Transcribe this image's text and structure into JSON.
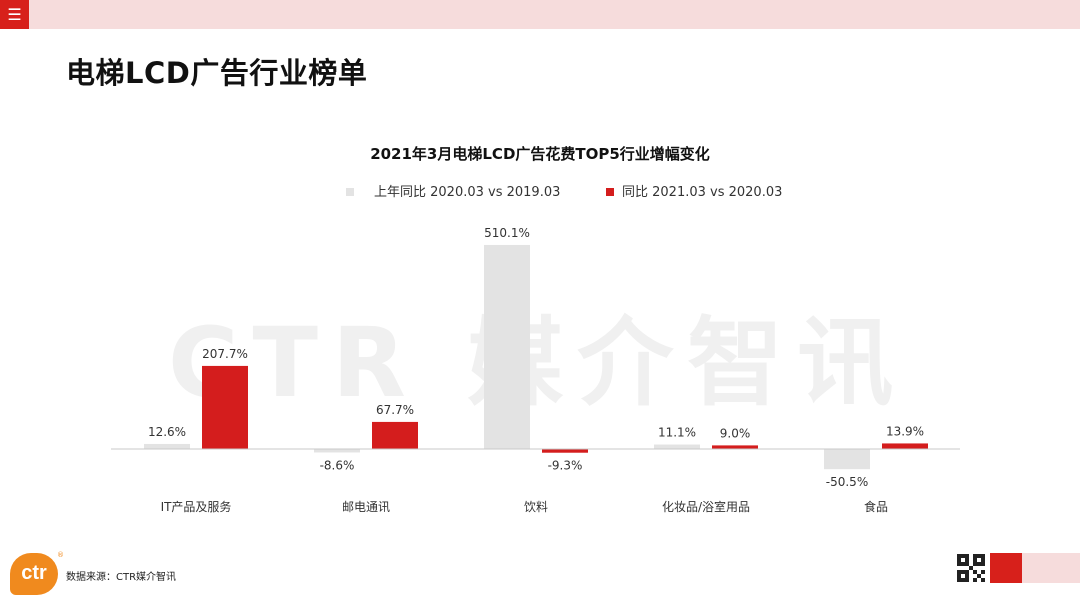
{
  "header": {
    "menu_icon": "hamburger-icon",
    "menu_glyph": "☰"
  },
  "page": {
    "title": "电梯LCD广告行业榜单"
  },
  "watermark": {
    "text": "CTR 媒介智讯"
  },
  "colors": {
    "series1": "#e3e3e3",
    "series2": "#d41d1d",
    "brand_red": "#d7201b",
    "logo_orange": "#f08a1e"
  },
  "chart_data": {
    "type": "bar",
    "title": "2021年3月电梯LCD广告花费TOP5行业增幅变化",
    "categories": [
      "IT产品及服务",
      "邮电通讯",
      "饮料",
      "化妆品/浴室用品",
      "食品"
    ],
    "series": [
      {
        "name": "上年同比 2020.03 vs 2019.03",
        "values": [
          12.6,
          -8.6,
          510.1,
          11.1,
          -50.5
        ],
        "labels": [
          "12.6%",
          "-8.6%",
          "510.1%",
          "11.1%",
          "-50.5%"
        ]
      },
      {
        "name": "同比 2021.03 vs 2020.03",
        "values": [
          207.7,
          67.7,
          -9.3,
          9.0,
          13.9
        ],
        "labels": [
          "207.7%",
          "67.7%",
          "-9.3%",
          "9.0%",
          "13.9%"
        ]
      }
    ],
    "xlabel": "",
    "ylabel": "",
    "ylim": [
      -60,
      520
    ],
    "grid": false,
    "legend_position": "top-center"
  },
  "footer": {
    "source": "数据来源：CTR媒介智讯",
    "logo_text": "ctr",
    "logo_mark": "®"
  }
}
